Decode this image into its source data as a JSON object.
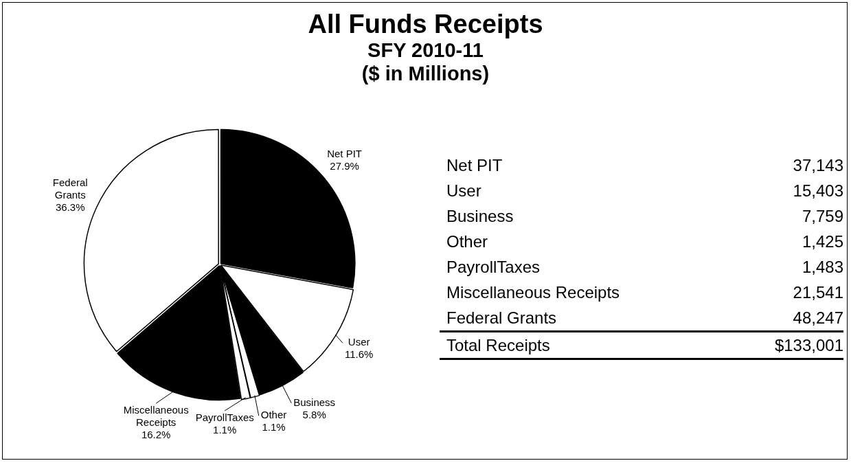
{
  "chart_data": [
    {
      "type": "pie",
      "title": "All Funds Receipts",
      "subtitle": "SFY 2010-11\n($ in Millions)",
      "categories": [
        "Net PIT",
        "User",
        "Business",
        "Other",
        "PayrollTaxes",
        "Miscellaneous Receipts",
        "Federal Grants"
      ],
      "values": [
        27.9,
        11.6,
        5.8,
        1.1,
        1.1,
        16.2,
        36.3
      ],
      "colors": [
        "#000000",
        "#ffffff",
        "#000000",
        "#ffffff",
        "#ffffff",
        "#000000",
        "#ffffff"
      ],
      "value_labels": [
        "27.9%",
        "11.6%",
        "5.8%",
        "1.1%",
        "1.1%",
        "16.2%",
        "36.3%"
      ]
    },
    {
      "type": "other",
      "categories": [
        "Net PIT",
        "User",
        "Business",
        "Other",
        "PayrollTaxes",
        "Miscellaneous Receipts",
        "Federal Grants"
      ],
      "values": [
        37143,
        15403,
        7759,
        1425,
        1483,
        21541,
        48247
      ],
      "value_labels": [
        "37,143",
        "15,403",
        "7,759",
        "1,425",
        "1,483",
        "21,541",
        "48,247"
      ],
      "annotations": [
        "Total Receipts",
        "$133,001"
      ]
    }
  ]
}
